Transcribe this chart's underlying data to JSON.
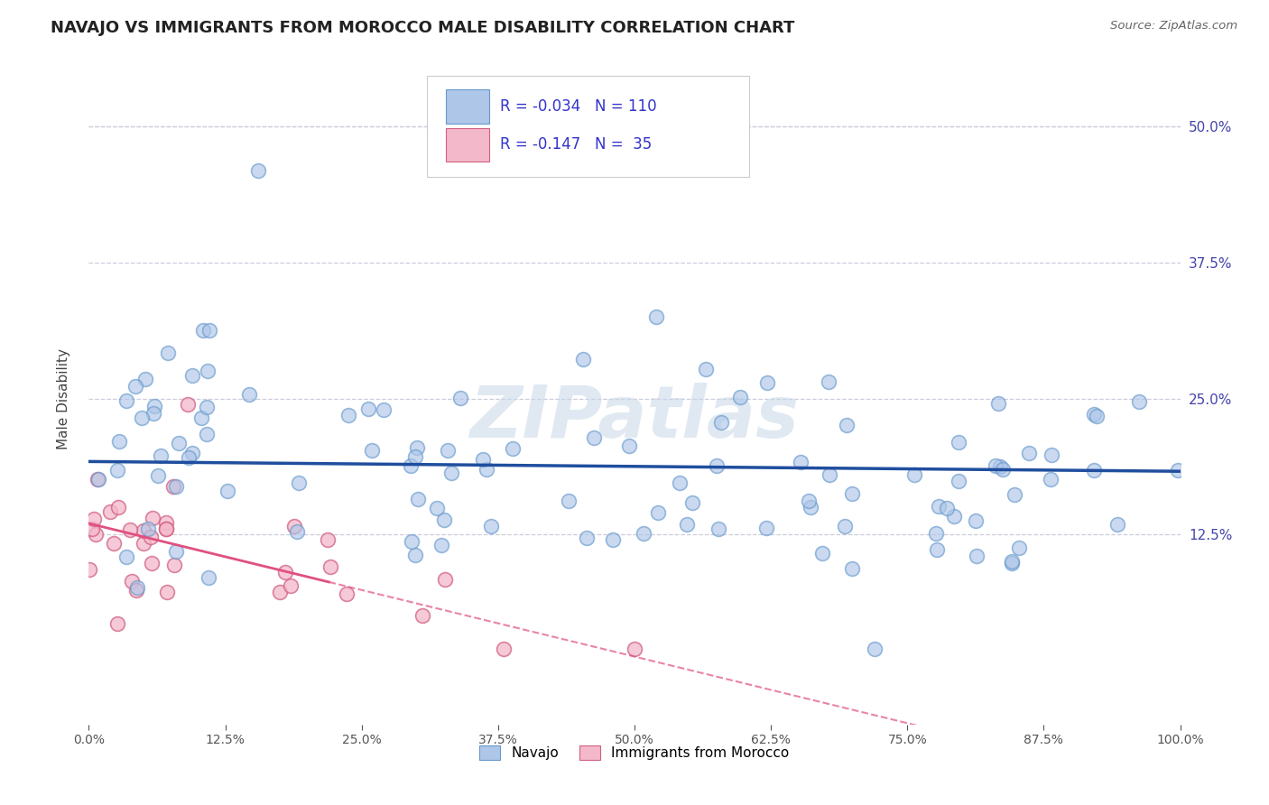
{
  "title": "NAVAJO VS IMMIGRANTS FROM MOROCCO MALE DISABILITY CORRELATION CHART",
  "source": "Source: ZipAtlas.com",
  "ylabel": "Male Disability",
  "xlim": [
    0.0,
    1.0
  ],
  "ylim": [
    -0.05,
    0.55
  ],
  "xtick_labels": [
    "0.0%",
    "12.5%",
    "25.0%",
    "37.5%",
    "50.0%",
    "62.5%",
    "75.0%",
    "87.5%",
    "100.0%"
  ],
  "xtick_vals": [
    0.0,
    0.125,
    0.25,
    0.375,
    0.5,
    0.625,
    0.75,
    0.875,
    1.0
  ],
  "ytick_labels": [
    "12.5%",
    "25.0%",
    "37.5%",
    "50.0%"
  ],
  "ytick_vals": [
    0.125,
    0.25,
    0.375,
    0.5
  ],
  "navajo_R": "-0.034",
  "navajo_N": "110",
  "morocco_R": "-0.147",
  "morocco_N": "35",
  "navajo_color": "#aec6e8",
  "navajo_edge_color": "#6699cc",
  "navajo_line_color": "#1f4e9e",
  "morocco_color": "#f4b8cb",
  "morocco_edge_color": "#d06080",
  "morocco_line_color": "#e05080",
  "watermark_text": "ZIPatlas",
  "background_color": "#ffffff",
  "grid_color": "#ccccdd",
  "legend_text_color": "#3333cc",
  "legend_label_color": "#222222"
}
